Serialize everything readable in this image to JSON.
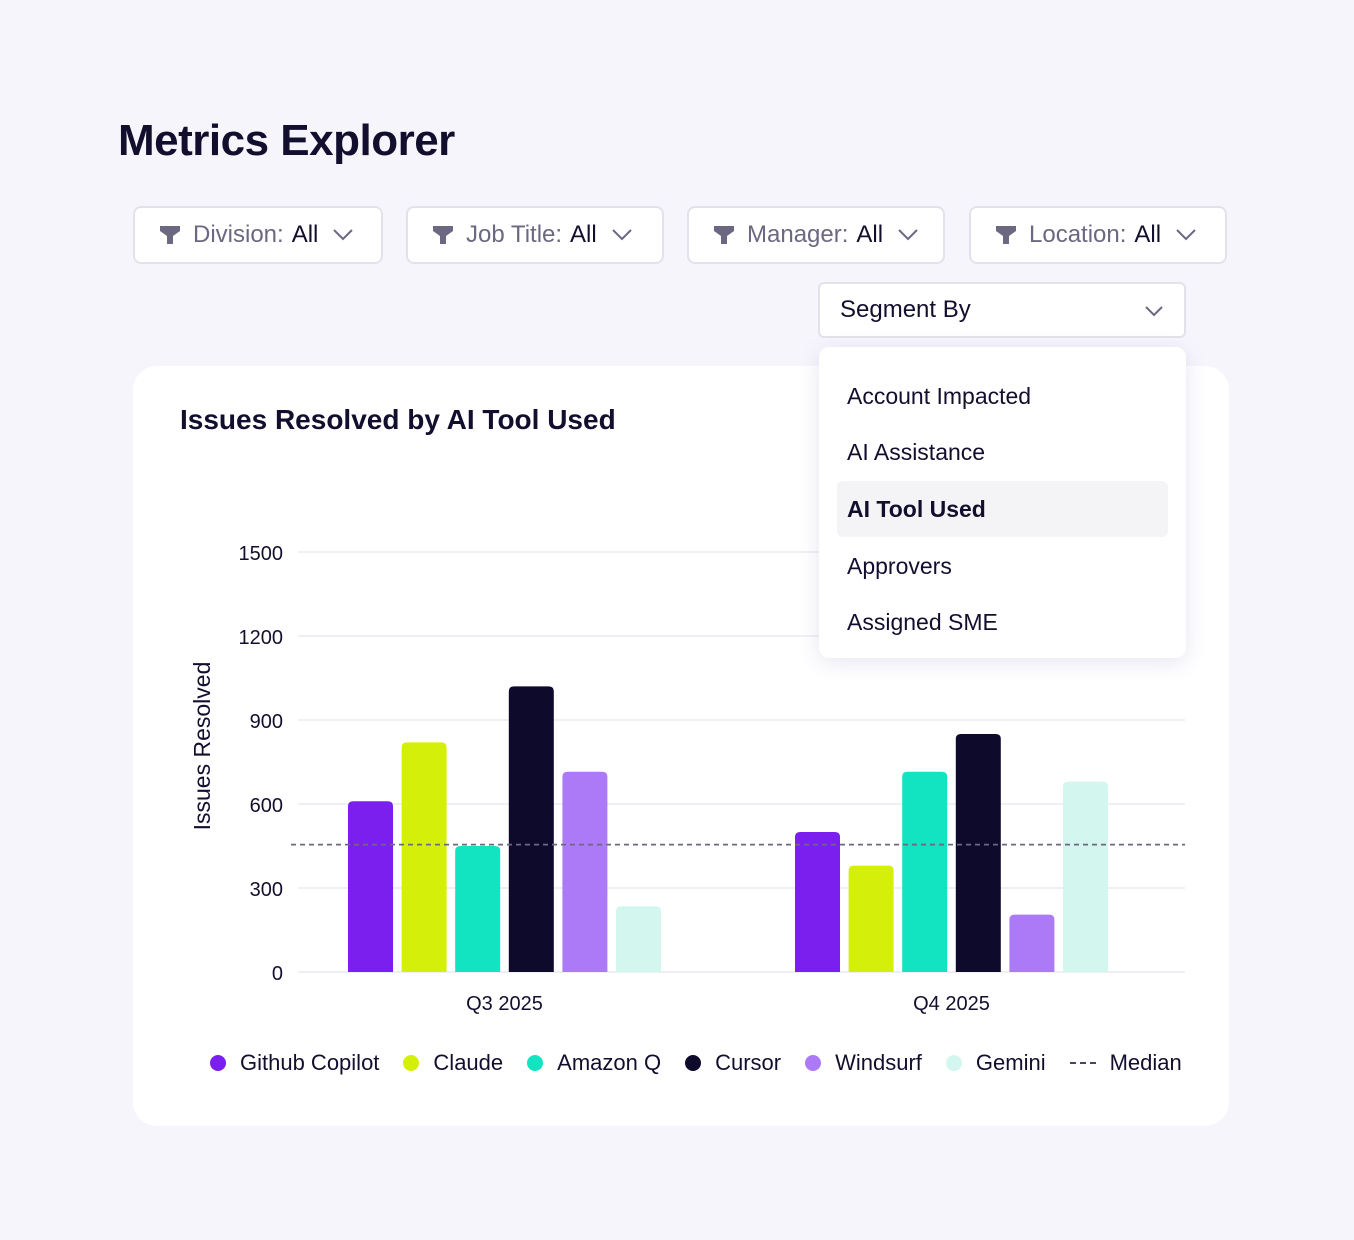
{
  "page": {
    "title": "Metrics Explorer"
  },
  "filters": [
    {
      "label": "Division:",
      "value": "All"
    },
    {
      "label": "Job Title:",
      "value": "All"
    },
    {
      "label": "Manager:",
      "value": "All"
    },
    {
      "label": "Location:",
      "value": "All"
    }
  ],
  "segment": {
    "label": "Segment By",
    "options": [
      "Account Impacted",
      "AI Assistance",
      "AI Tool Used",
      "Approvers",
      "Assigned SME"
    ],
    "selected": "AI Tool Used"
  },
  "icons": {
    "filter": "funnel-icon",
    "dropdown": "chevron-down-icon"
  },
  "chart_data": {
    "type": "bar",
    "title": "Issues Resolved by AI Tool Used",
    "xlabel": "",
    "ylabel": "Issues Resolved",
    "ylim": [
      0,
      1500
    ],
    "yticks": [
      0,
      300,
      600,
      900,
      1200,
      1500
    ],
    "categories": [
      "Q3 2025",
      "Q4 2025"
    ],
    "series": [
      {
        "name": "Github Copilot",
        "color": "#7b1fef",
        "values": [
          610,
          500
        ]
      },
      {
        "name": "Claude",
        "color": "#d4f00a",
        "values": [
          820,
          380
        ]
      },
      {
        "name": "Amazon Q",
        "color": "#12e3c1",
        "values": [
          450,
          715
        ]
      },
      {
        "name": "Cursor",
        "color": "#0d0a2b",
        "values": [
          1020,
          850
        ]
      },
      {
        "name": "Windsurf",
        "color": "#ac7af6",
        "values": [
          715,
          205
        ]
      },
      {
        "name": "Gemini",
        "color": "#d3f7ef",
        "values": [
          235,
          680
        ]
      }
    ],
    "median": {
      "name": "Median",
      "value": 455,
      "color": "#6c6882"
    }
  }
}
